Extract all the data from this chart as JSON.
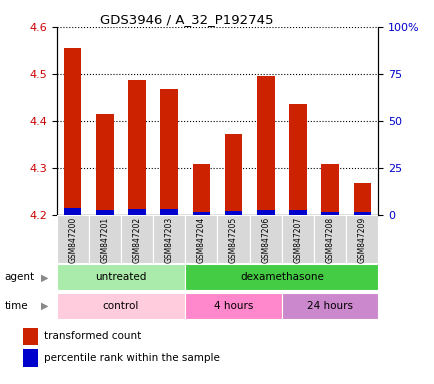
{
  "title": "GDS3946 / A_32_P192745",
  "samples": [
    "GSM847200",
    "GSM847201",
    "GSM847202",
    "GSM847203",
    "GSM847204",
    "GSM847205",
    "GSM847206",
    "GSM847207",
    "GSM847208",
    "GSM847209"
  ],
  "red_values": [
    4.555,
    4.415,
    4.487,
    4.468,
    4.308,
    4.373,
    4.495,
    4.437,
    4.308,
    4.268
  ],
  "blue_pct": [
    3.5,
    2.5,
    3.0,
    3.0,
    1.5,
    2.0,
    2.5,
    2.5,
    1.5,
    1.5
  ],
  "ylim_left": [
    4.2,
    4.6
  ],
  "ylim_right": [
    0,
    100
  ],
  "yticks_left": [
    4.2,
    4.3,
    4.4,
    4.5,
    4.6
  ],
  "yticks_right": [
    0,
    25,
    50,
    75,
    100
  ],
  "ytick_labels_right": [
    "0",
    "25",
    "50",
    "75",
    "100%"
  ],
  "bar_bottom": 4.2,
  "agent_groups": [
    {
      "label": "untreated",
      "start": 0,
      "end": 4,
      "color": "#aaeaaa"
    },
    {
      "label": "dexamethasone",
      "start": 4,
      "end": 10,
      "color": "#44cc44"
    }
  ],
  "time_groups": [
    {
      "label": "control",
      "start": 0,
      "end": 4,
      "color": "#ffccdd"
    },
    {
      "label": "4 hours",
      "start": 4,
      "end": 7,
      "color": "#ff88cc"
    },
    {
      "label": "24 hours",
      "start": 7,
      "end": 10,
      "color": "#cc88cc"
    }
  ],
  "red_color": "#cc2200",
  "blue_color": "#0000cc",
  "left_axis_color": "#cc0000",
  "right_axis_color": "#0000cc",
  "bar_width": 0.55,
  "legend_items": [
    {
      "color": "#cc2200",
      "label": "transformed count"
    },
    {
      "color": "#0000cc",
      "label": "percentile rank within the sample"
    }
  ]
}
